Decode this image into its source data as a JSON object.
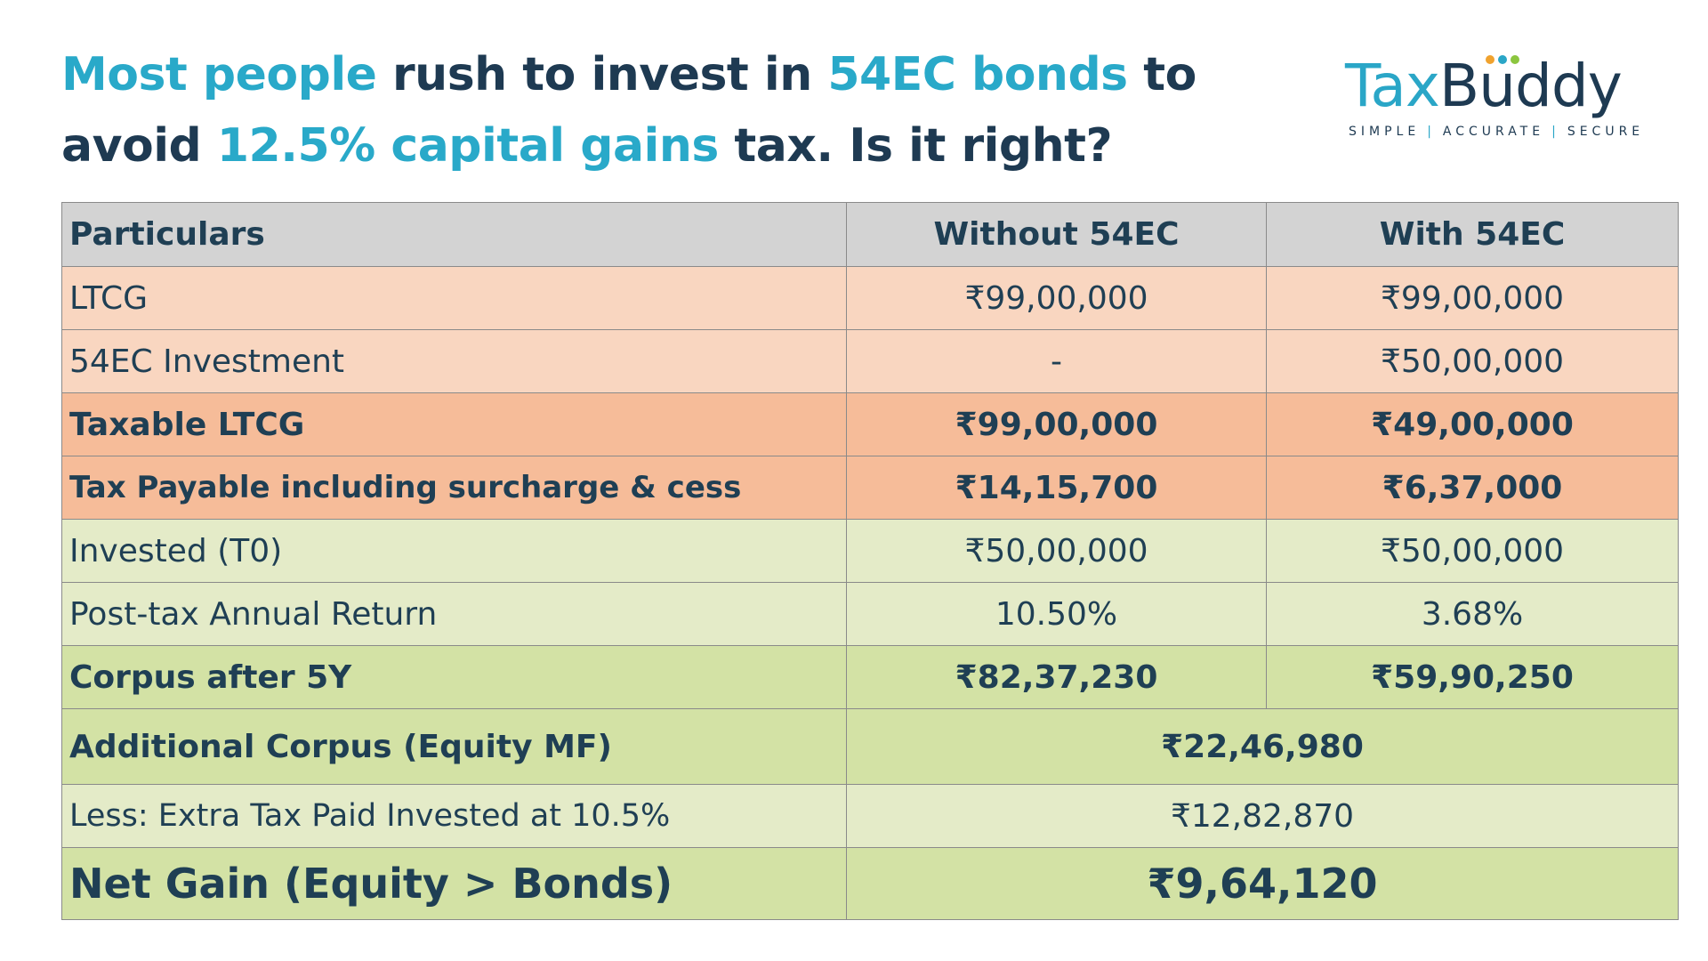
{
  "headline": {
    "p1": "Most people",
    "p2": " rush to invest in ",
    "p3": "54EC bonds",
    "p4": " to avoid ",
    "p5": "12.5% capital gains",
    "p6": " tax. Is it right?"
  },
  "logo": {
    "tax": "Tax",
    "buddy": "Buddy",
    "tag1": "SIMPLE",
    "sep": "|",
    "tag2": "ACCURATE",
    "tag3": "SECURE",
    "dot_colors": [
      "#f0a22e",
      "#2aa6c7",
      "#8cc63f"
    ]
  },
  "colors": {
    "accent": "#29a9c9",
    "navy": "#1e3a52",
    "header_bg": "#d3d3d3",
    "peach": "#f9d6c0",
    "peach_dark": "#f6bc99",
    "green": "#e4ebc8",
    "green_dark": "#d3e2a5"
  },
  "table": {
    "headers": [
      "Particulars",
      "Without 54EC",
      "With 54EC"
    ],
    "rows": [
      {
        "label": "LTCG",
        "without": "₹99,00,000",
        "with": "₹99,00,000"
      },
      {
        "label": "54EC Investment",
        "without": "-",
        "with": "₹50,00,000"
      },
      {
        "label": "Taxable LTCG",
        "without": "₹99,00,000",
        "with": "₹49,00,000"
      },
      {
        "label": "Tax Payable including surcharge & cess",
        "without": "₹14,15,700",
        "with": "₹6,37,000"
      },
      {
        "label": "Invested (T0)",
        "without": "₹50,00,000",
        "with": "₹50,00,000"
      },
      {
        "label": "Post-tax Annual Return",
        "without": "10.50%",
        "with": "3.68%"
      },
      {
        "label": "Corpus after 5Y",
        "without": "₹82,37,230",
        "with": "₹59,90,250"
      }
    ],
    "merged_rows": [
      {
        "label": "Additional Corpus (Equity MF)",
        "value": "₹22,46,980"
      },
      {
        "label": "Less: Extra Tax Paid Invested at 10.5%",
        "value": "₹12,82,870"
      },
      {
        "label": "Net Gain (Equity > Bonds)",
        "value": "₹9,64,120"
      }
    ]
  }
}
